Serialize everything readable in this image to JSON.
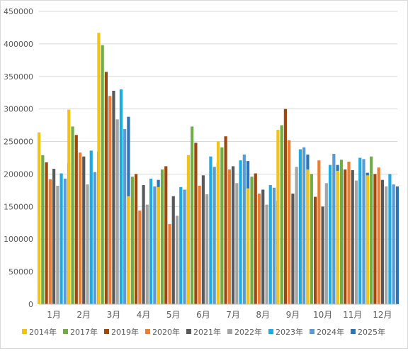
{
  "chart_data": {
    "type": "bar",
    "title": "",
    "xlabel": "",
    "ylabel": "",
    "ylim": [
      0,
      450000
    ],
    "yticks": [
      0,
      50000,
      100000,
      150000,
      200000,
      250000,
      300000,
      350000,
      400000,
      450000
    ],
    "ytick_labels": [
      "0",
      "50000",
      "100000",
      "150000",
      "200000",
      "250000",
      "300000",
      "350000",
      "400000",
      "450000"
    ],
    "grid": true,
    "legend_position": "bottom",
    "categories": [
      "1月",
      "2月",
      "3月",
      "4月",
      "5月",
      "6月",
      "7月",
      "8月",
      "9月",
      "10月",
      "11月",
      "12月"
    ],
    "series": [
      {
        "name": "2014年",
        "color": "#f2c314",
        "values": [
          264000,
          299000,
          417000,
          166000,
          180000,
          229000,
          250000,
          178000,
          268000,
          207000,
          205000,
          198000
        ]
      },
      {
        "name": "2017年",
        "color": "#70ad47",
        "values": [
          229000,
          273000,
          398000,
          196000,
          207000,
          273000,
          241000,
          196000,
          275000,
          200000,
          222000,
          227000
        ]
      },
      {
        "name": "2019年",
        "color": "#9e480e",
        "values": [
          218000,
          260000,
          357000,
          200000,
          212000,
          248000,
          258000,
          201000,
          300000,
          165000,
          207000,
          200000
        ]
      },
      {
        "name": "2020年",
        "color": "#ed7d31",
        "values": [
          192000,
          233000,
          320000,
          144000,
          123000,
          182000,
          207000,
          170000,
          252000,
          221000,
          219000,
          210000
        ]
      },
      {
        "name": "2021年",
        "color": "#595959",
        "values": [
          208000,
          227000,
          328000,
          183000,
          166000,
          198000,
          212000,
          176000,
          170000,
          150000,
          206000,
          191000
        ]
      },
      {
        "name": "2022年",
        "color": "#a5a5a5",
        "values": [
          182000,
          184000,
          284000,
          153000,
          136000,
          169000,
          186000,
          153000,
          211000,
          186000,
          190000,
          181000
        ]
      },
      {
        "name": "2023年",
        "color": "#1cace4",
        "values": [
          201000,
          236000,
          330000,
          193000,
          180000,
          227000,
          221000,
          183000,
          238000,
          214000,
          225000,
          200000
        ]
      },
      {
        "name": "2024年",
        "color": "#5b9bd5",
        "values": [
          193000,
          203000,
          269000,
          181000,
          176000,
          211000,
          230000,
          179000,
          241000,
          231000,
          223000,
          184000
        ]
      },
      {
        "name": "2025年",
        "color": "#2e75b6",
        "values": [
          217000,
          234000,
          288000,
          191000,
          177000,
          217000,
          220000,
          159000,
          230000,
          214000,
          202000,
          181000
        ]
      }
    ]
  }
}
